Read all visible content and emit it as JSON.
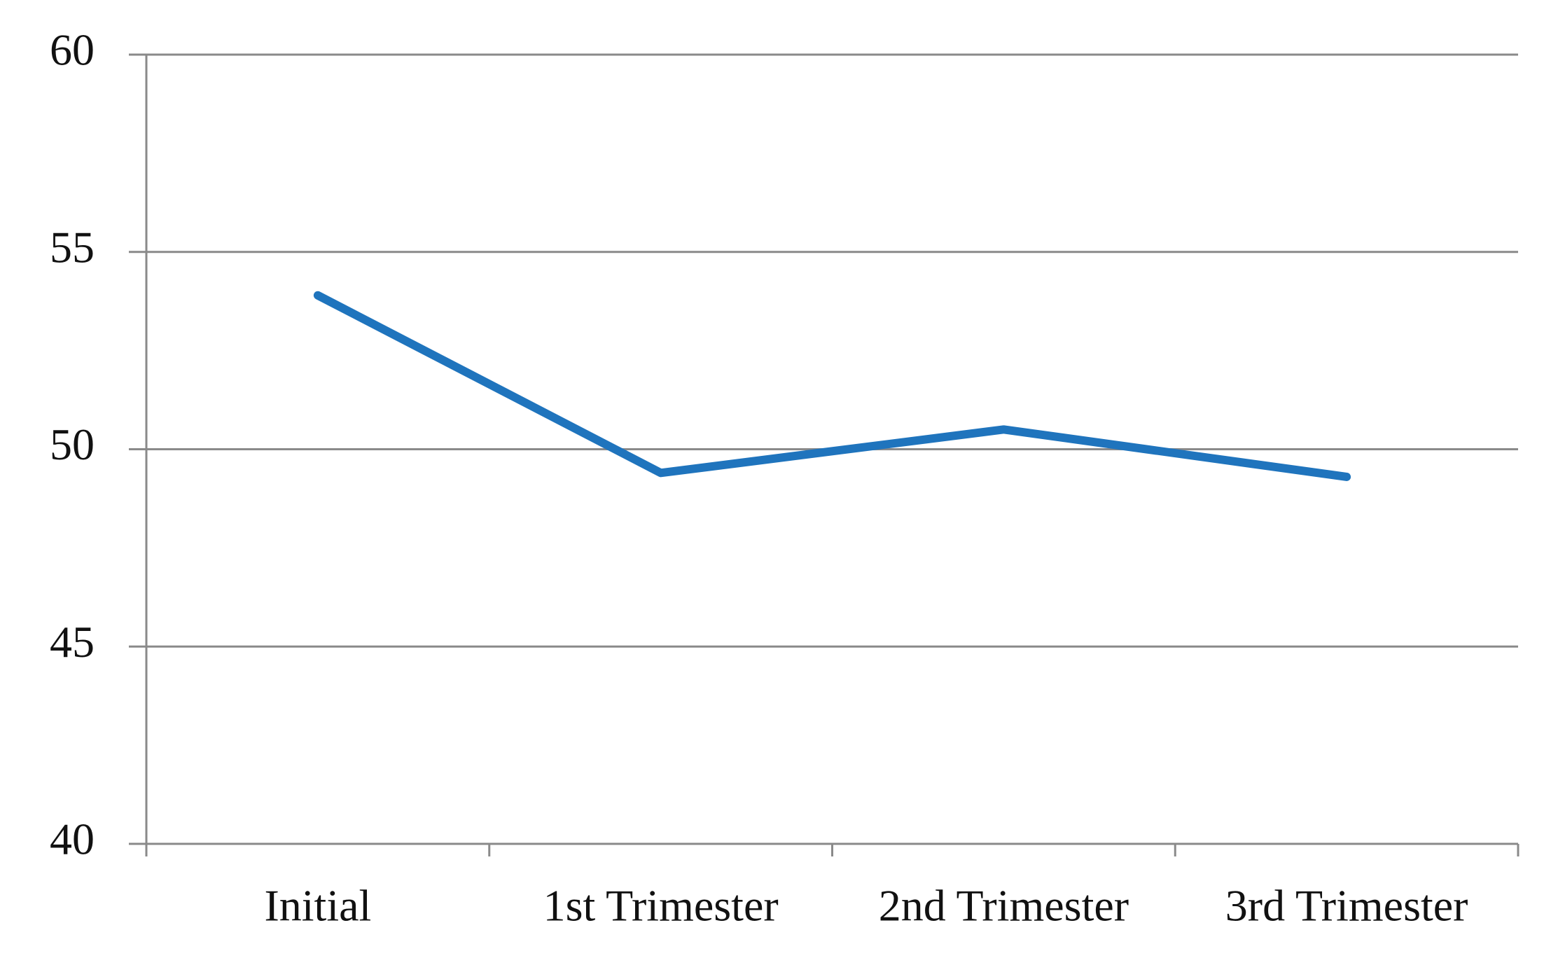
{
  "chart_data": {
    "type": "line",
    "categories": [
      "Initial",
      "1st Trimester",
      "2nd Trimester",
      "3rd Trimester"
    ],
    "values": [
      53.9,
      49.4,
      50.5,
      49.3
    ],
    "color": "#1f74bd",
    "ylim": [
      40,
      60
    ],
    "yticks": [
      40,
      45,
      50,
      55,
      60
    ],
    "grid": true
  }
}
